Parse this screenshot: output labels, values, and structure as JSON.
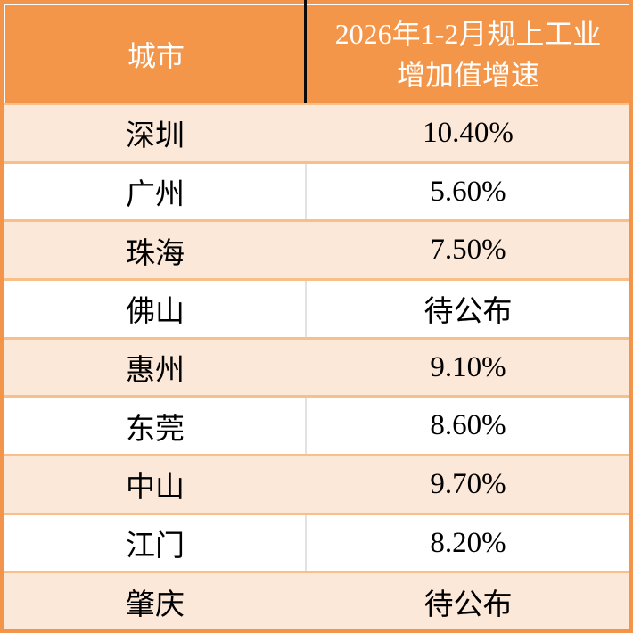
{
  "colors": {
    "header_orange": "#F4964A",
    "frame_orange": "#F2944A",
    "row_peach": "#FCE8D9",
    "row_border_orange": "#F8BF89",
    "divider_black": "#0A0A0A",
    "divider_gray": "#E2E2E2",
    "header_text": "#FFFFFF",
    "body_text": "#000000"
  },
  "table": {
    "header": {
      "city_label": "城市",
      "metric_line1": "2026年1-2月规上工业",
      "metric_line2": "增加值增速"
    },
    "rows": [
      {
        "city": "深圳",
        "value": "10.40%"
      },
      {
        "city": "广州",
        "value": "5.60%"
      },
      {
        "city": "珠海",
        "value": "7.50%"
      },
      {
        "city": "佛山",
        "value": "待公布"
      },
      {
        "city": "惠州",
        "value": "9.10%"
      },
      {
        "city": "东莞",
        "value": "8.60%"
      },
      {
        "city": "中山",
        "value": "9.70%"
      },
      {
        "city": "江门",
        "value": "8.20%"
      },
      {
        "city": "肇庆",
        "value": "待公布"
      }
    ]
  },
  "chart_data": {
    "type": "table",
    "title": "",
    "columns": [
      "城市",
      "2026年1-2月规上工业增加值增速"
    ],
    "rows": [
      [
        "深圳",
        "10.40%"
      ],
      [
        "广州",
        "5.60%"
      ],
      [
        "珠海",
        "7.50%"
      ],
      [
        "佛山",
        "待公布"
      ],
      [
        "惠州",
        "9.10%"
      ],
      [
        "东莞",
        "8.60%"
      ],
      [
        "中山",
        "9.70%"
      ],
      [
        "江门",
        "8.20%"
      ],
      [
        "肇庆",
        "待公布"
      ]
    ],
    "layout_hints": {
      "header_fill": "#F4964A",
      "alt_row_fill": "#FCE8D9",
      "first_data_row_striped": true
    }
  }
}
